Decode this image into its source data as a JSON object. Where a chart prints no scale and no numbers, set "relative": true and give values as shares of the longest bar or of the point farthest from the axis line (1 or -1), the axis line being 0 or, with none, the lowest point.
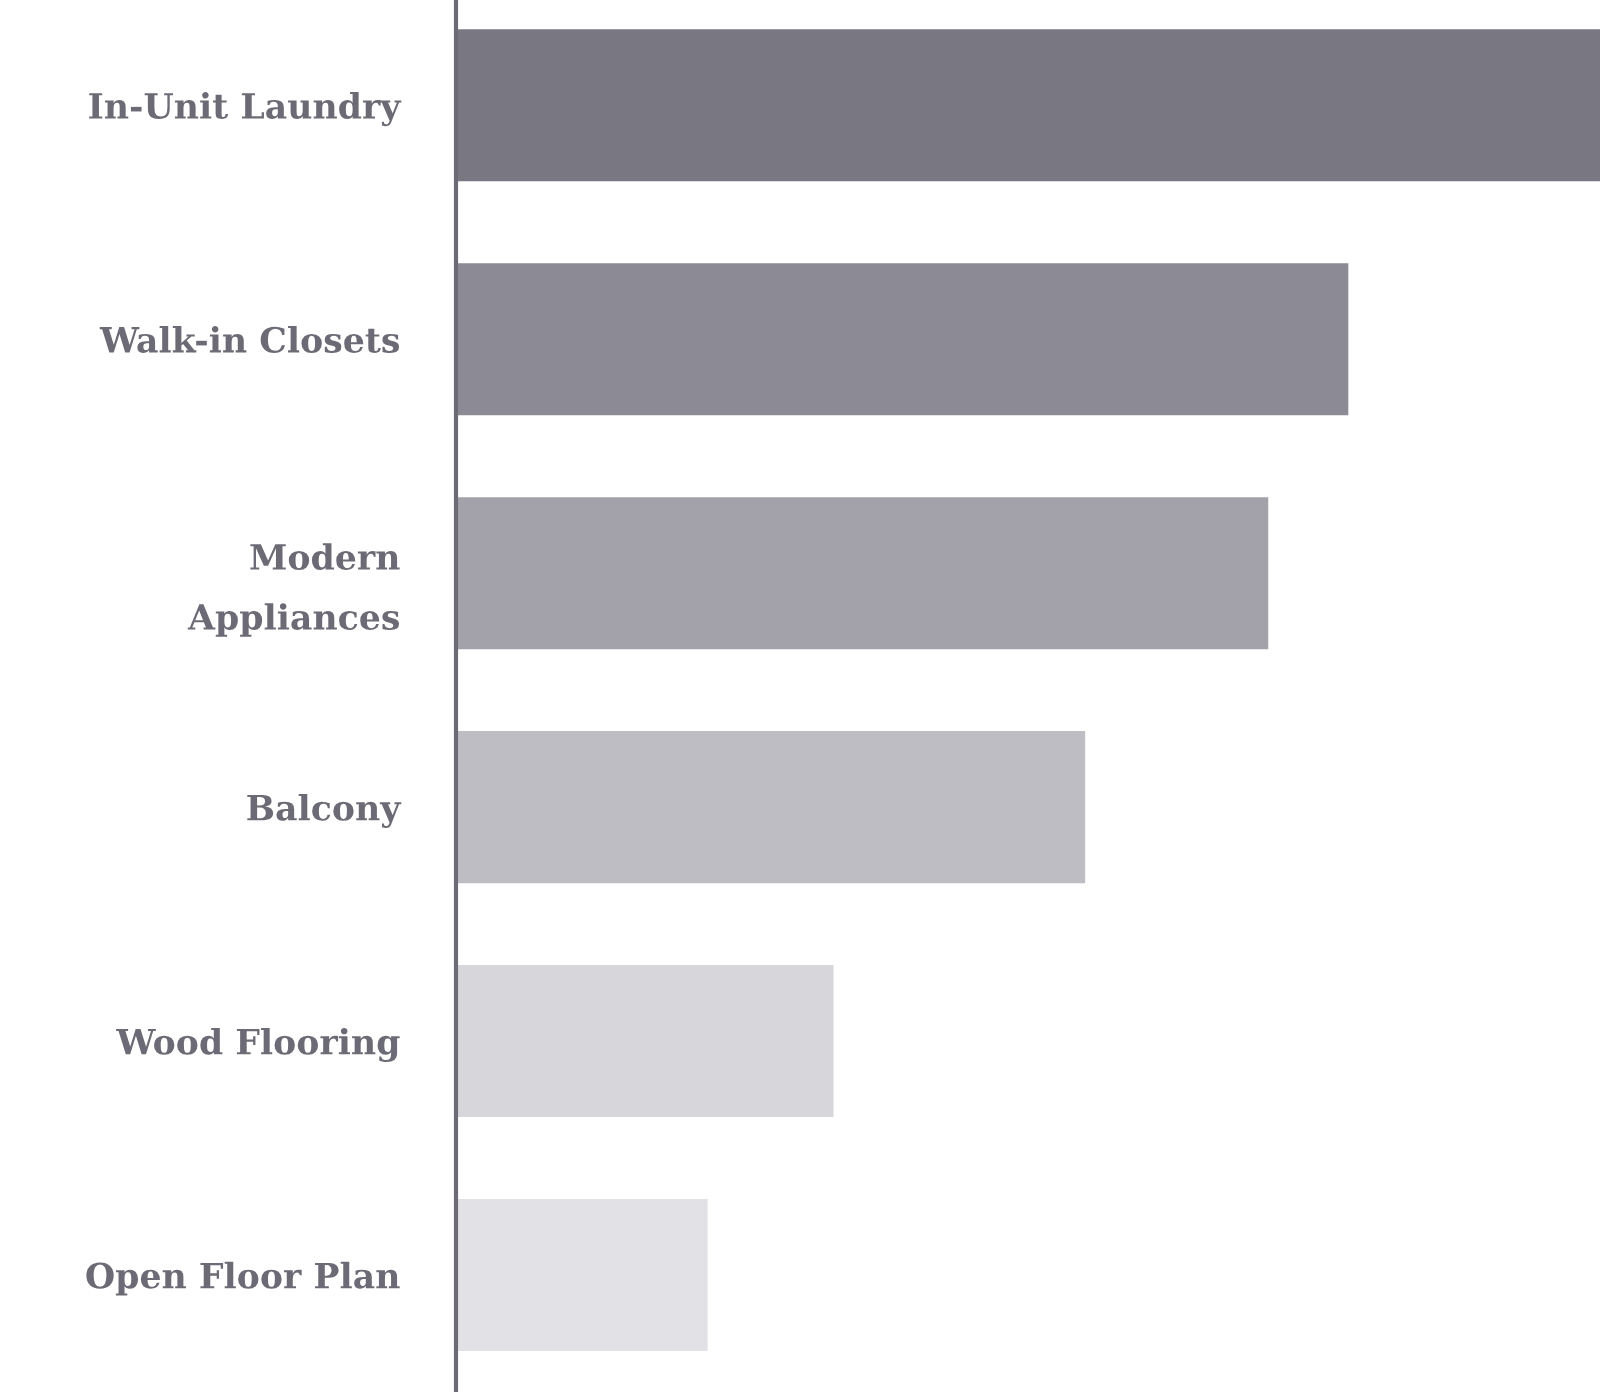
{
  "chart_data": {
    "type": "bar",
    "orientation": "horizontal",
    "relative": true,
    "categories": [
      "In-Unit Laundry",
      "Walk-in Closets",
      "Modern\nAppliances",
      "Balcony",
      "Wood Flooring",
      "Open Floor Plan"
    ],
    "values": [
      1,
      0.78,
      0.71,
      0.55,
      0.33,
      0.22
    ],
    "colors": [
      "#797882",
      "#8c8b95",
      "#a3a2ab",
      "#bebdc4",
      "#d7d6db",
      "#e2e1e5"
    ],
    "grid": false,
    "legend": false
  }
}
